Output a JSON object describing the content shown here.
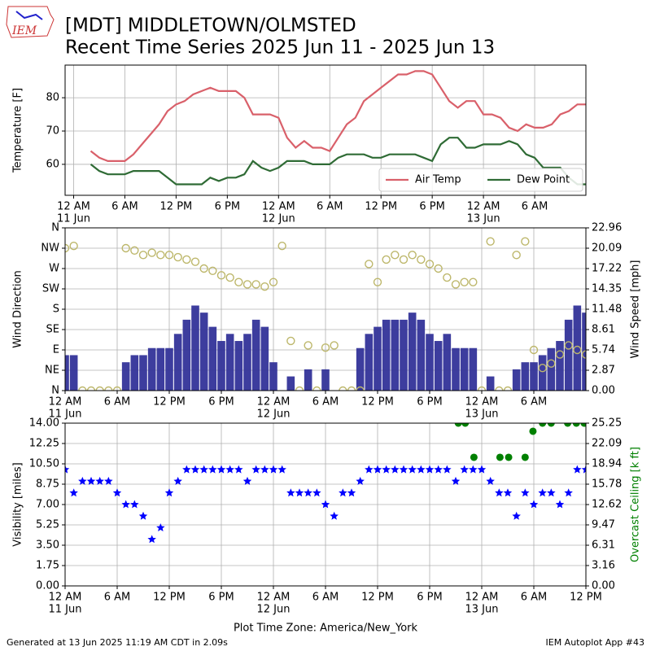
{
  "logo_text": "IEM",
  "title": [
    "[MDT] MIDDLETOWN/OLMSTED",
    "Recent Time Series 2025 Jun 11 - 2025 Jun 13"
  ],
  "footer_left": "Generated at 13 Jun 2025 11:19 AM CDT in 2.09s",
  "footer_right": "IEM Autoplot App #43",
  "chart_data": [
    {
      "type": "line",
      "ylabel": "Temperature [F]",
      "x": [
        2,
        3,
        4,
        5,
        6,
        7,
        8,
        9,
        10,
        11,
        12,
        13,
        14,
        15,
        16,
        17,
        18,
        19,
        20,
        21,
        22,
        23,
        24,
        25,
        26,
        27,
        28,
        29,
        30,
        31,
        32,
        33,
        34,
        35,
        36,
        37,
        38,
        39,
        40,
        41,
        42,
        43,
        44,
        45,
        46,
        47,
        48,
        49,
        50,
        51,
        52,
        53,
        54,
        55,
        56,
        57,
        58,
        59,
        60
      ],
      "xlim": [
        -1,
        60
      ],
      "ylim": [
        50.7,
        89.8
      ],
      "yticks": [
        60,
        70,
        80
      ],
      "grid": true,
      "legend": "lower right",
      "xticks": [
        {
          "value": 0,
          "label": "12 AM",
          "date": "11 Jun"
        },
        {
          "value": 6,
          "label": "6 AM"
        },
        {
          "value": 12,
          "label": "12 PM"
        },
        {
          "value": 18,
          "label": "6 PM"
        },
        {
          "value": 24,
          "label": "12 AM",
          "date": "12 Jun"
        },
        {
          "value": 30,
          "label": "6 AM"
        },
        {
          "value": 36,
          "label": "12 PM"
        },
        {
          "value": 42,
          "label": "6 PM"
        },
        {
          "value": 48,
          "label": "12 AM",
          "date": "13 Jun"
        },
        {
          "value": 54,
          "label": "6 AM"
        }
      ],
      "series": [
        {
          "name": "Air Temp",
          "color": "#d9606a",
          "values": [
            64,
            62,
            61,
            61,
            61,
            63,
            66,
            69,
            72,
            76,
            78,
            79,
            81,
            82,
            83,
            82,
            82,
            82,
            80,
            75,
            75,
            75,
            74,
            68,
            65,
            67,
            65,
            65,
            64,
            68,
            72,
            74,
            79,
            81,
            83,
            85,
            87,
            87,
            88,
            88,
            87,
            83,
            79,
            77,
            79,
            79,
            75,
            75,
            74,
            71,
            70,
            72,
            71,
            71,
            72,
            75,
            76,
            78,
            78
          ]
        },
        {
          "name": "Dew Point",
          "color": "#2f6b35",
          "values": [
            60,
            58,
            57,
            57,
            57,
            58,
            58,
            58,
            58,
            56,
            54,
            54,
            54,
            54,
            56,
            55,
            56,
            56,
            57,
            61,
            59,
            58,
            59,
            61,
            61,
            61,
            60,
            60,
            60,
            62,
            63,
            63,
            63,
            62,
            62,
            63,
            63,
            63,
            63,
            62,
            61,
            66,
            68,
            68,
            65,
            65,
            66,
            66,
            66,
            67,
            66,
            63,
            62,
            59,
            59,
            59,
            56,
            54,
            54
          ]
        }
      ]
    },
    {
      "type": "combo",
      "ylabel": "Wind Direction",
      "y2label": "Wind Speed [mph]",
      "x": [
        0,
        1,
        2,
        3,
        4,
        5,
        6,
        7,
        8,
        9,
        10,
        11,
        12,
        13,
        14,
        15,
        16,
        17,
        18,
        19,
        20,
        21,
        22,
        23,
        24,
        25,
        26,
        27,
        28,
        29,
        30,
        31,
        32,
        33,
        34,
        35,
        36,
        37,
        38,
        39,
        40,
        41,
        42,
        43,
        44,
        45,
        46,
        47,
        48,
        49,
        50,
        51,
        52,
        53,
        54,
        55,
        56,
        57,
        58,
        59,
        60
      ],
      "xlim": [
        0,
        60
      ],
      "ylim": [
        0,
        360
      ],
      "y2lim": [
        0,
        22.96
      ],
      "grid": true,
      "yticks": [
        {
          "value": 0,
          "label": "N"
        },
        {
          "value": 45,
          "label": "NE"
        },
        {
          "value": 90,
          "label": "E"
        },
        {
          "value": 135,
          "label": "SE"
        },
        {
          "value": 180,
          "label": "S"
        },
        {
          "value": 225,
          "label": "SW"
        },
        {
          "value": 270,
          "label": "W"
        },
        {
          "value": 315,
          "label": "NW"
        },
        {
          "value": 360,
          "label": "N"
        }
      ],
      "y2ticks": [
        {
          "value": 0,
          "label": "0.00"
        },
        2.87,
        5.74,
        8.61,
        11.48,
        14.35,
        17.22,
        20.09,
        22.96
      ],
      "xticks": [
        {
          "value": 0,
          "label": "12 AM",
          "date": "11 Jun"
        },
        {
          "value": 6,
          "label": "6 AM"
        },
        {
          "value": 12,
          "label": "12 PM"
        },
        {
          "value": 18,
          "label": "6 PM"
        },
        {
          "value": 24,
          "label": "12 AM",
          "date": "12 Jun"
        },
        {
          "value": 30,
          "label": "6 AM"
        },
        {
          "value": 36,
          "label": "12 PM"
        },
        {
          "value": 42,
          "label": "6 PM"
        },
        {
          "value": 48,
          "label": "12 AM",
          "date": "13 Jun"
        },
        {
          "value": 54,
          "label": "6 AM"
        }
      ],
      "series": [
        {
          "type": "bar",
          "axis": "y2",
          "color": "#333399",
          "values": [
            5,
            5,
            0,
            0,
            0,
            0,
            0,
            4,
            5,
            5,
            6,
            6,
            6,
            8,
            10,
            12,
            11,
            9,
            7,
            8,
            7,
            8,
            10,
            9,
            4,
            0,
            2,
            0,
            3,
            0,
            3,
            0,
            0,
            0,
            6,
            8,
            9,
            10,
            10,
            10,
            11,
            10,
            8,
            7,
            8,
            6,
            6,
            6,
            0,
            2,
            0,
            0,
            3,
            4,
            4,
            5,
            6,
            7,
            10,
            12,
            11
          ]
        },
        {
          "type": "scatter",
          "marker": "ring",
          "color": "#bdb76b",
          "values": [
            315,
            320,
            0,
            0,
            0,
            0,
            0,
            315,
            310,
            300,
            305,
            300,
            300,
            295,
            290,
            285,
            270,
            265,
            255,
            250,
            240,
            235,
            235,
            230,
            240,
            320,
            110,
            0,
            100,
            0,
            95,
            100,
            0,
            0,
            0,
            280,
            240,
            290,
            300,
            290,
            300,
            290,
            280,
            270,
            250,
            235,
            240,
            240,
            0,
            330,
            0,
            0,
            300,
            330,
            90,
            50,
            60,
            80,
            100,
            90,
            80
          ]
        }
      ]
    },
    {
      "type": "combo",
      "xlabel": "Plot Time Zone: America/New_York",
      "ylabel": "Visibility [miles]",
      "y2label": "Overcast Ceiling [k ft]",
      "x": [
        0,
        1,
        2,
        3,
        4,
        5,
        6,
        7,
        8,
        9,
        10,
        11,
        12,
        13,
        14,
        15,
        16,
        17,
        18,
        19,
        20,
        21,
        22,
        23,
        24,
        25,
        26,
        27,
        28,
        29,
        30,
        31,
        32,
        33,
        34,
        35,
        36,
        37,
        38,
        39,
        40,
        41,
        42,
        43,
        44,
        45,
        46,
        47,
        48,
        49,
        50,
        51,
        52,
        53,
        54,
        55,
        56,
        57,
        58,
        59,
        60
      ],
      "xlim": [
        0,
        60
      ],
      "ylim": [
        0,
        14
      ],
      "y2lim": [
        0,
        25.25
      ],
      "grid": true,
      "yticks": [
        {
          "value": 0,
          "label": "0.00"
        },
        1.75,
        {
          "value": 3.5,
          "label": "3.50"
        },
        5.25,
        {
          "value": 7,
          "label": "7.00"
        },
        8.75,
        {
          "value": 10.5,
          "label": "10.50"
        },
        12.25,
        {
          "value": 14,
          "label": "14.00"
        }
      ],
      "y2ticks": [
        {
          "value": 0,
          "label": "0.00"
        },
        3.16,
        6.31,
        9.47,
        12.62,
        15.78,
        18.94,
        22.09,
        25.25
      ],
      "xticks": [
        {
          "value": 0,
          "label": "12 AM",
          "date": "11 Jun"
        },
        {
          "value": 6,
          "label": "6 AM"
        },
        {
          "value": 12,
          "label": "12 PM"
        },
        {
          "value": 18,
          "label": "6 PM"
        },
        {
          "value": 24,
          "label": "12 AM",
          "date": "12 Jun"
        },
        {
          "value": 30,
          "label": "6 AM"
        },
        {
          "value": 36,
          "label": "12 PM"
        },
        {
          "value": 42,
          "label": "6 PM"
        },
        {
          "value": 48,
          "label": "12 AM",
          "date": "13 Jun"
        },
        {
          "value": 54,
          "label": "6 AM"
        },
        {
          "value": 60,
          "label": "12 PM"
        }
      ],
      "series": [
        {
          "type": "scatter",
          "marker": "star",
          "color": "#0000ff",
          "values": [
            10,
            8,
            9,
            9,
            9,
            9,
            8,
            7,
            7,
            6,
            4,
            5,
            8,
            9,
            10,
            10,
            10,
            10,
            10,
            10,
            10,
            9,
            10,
            10,
            10,
            10,
            8,
            8,
            8,
            8,
            7,
            6,
            8,
            8,
            9,
            10,
            10,
            10,
            10,
            10,
            10,
            10,
            10,
            10,
            10,
            9,
            10,
            10,
            10,
            9,
            8,
            8,
            6,
            8,
            7,
            8,
            8,
            7,
            8,
            10,
            10
          ]
        },
        {
          "type": "scatter",
          "marker": "dot",
          "axis": "y2",
          "color": "#008000",
          "x": [
            45.3,
            46.1,
            47.1,
            50.1,
            51.1,
            53,
            53.9,
            55,
            56,
            57.9,
            58.9,
            59.8
          ],
          "values": [
            25.25,
            25.25,
            19.95,
            19.95,
            19.95,
            19.95,
            23.99,
            25.25,
            25.25,
            25.25,
            25.25,
            25.25
          ]
        }
      ]
    }
  ]
}
